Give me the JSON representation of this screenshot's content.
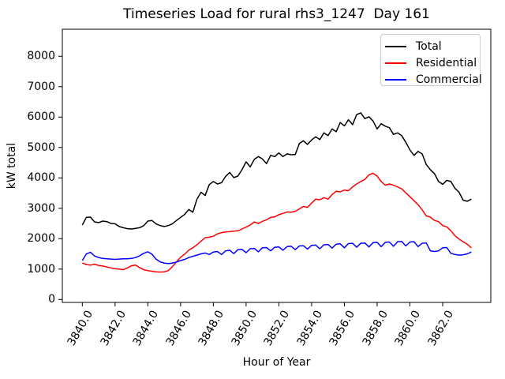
{
  "title": "Timeseries Load for rural rhs3_1247  Day 161",
  "chart_data": {
    "type": "line",
    "title": "Timeseries Load for rural rhs3_1247  Day 161",
    "xlabel": "Hour of Year",
    "ylabel": "kW total",
    "xlim": [
      3838.78,
      3864.94
    ],
    "ylim": [
      -96,
      8890
    ],
    "grid": false,
    "legend_position": "upper right",
    "xticks": [
      3840,
      3842,
      3844,
      3846,
      3848,
      3850,
      3852,
      3854,
      3856,
      3858,
      3860,
      3862
    ],
    "xtick_labels": [
      "3840.0",
      "3842.0",
      "3844.0",
      "3846.0",
      "3848.0",
      "3850.0",
      "3852.0",
      "3854.0",
      "3856.0",
      "3858.0",
      "3860.0",
      "3862.0"
    ],
    "yticks": [
      0,
      1000,
      2000,
      3000,
      4000,
      5000,
      6000,
      7000,
      8000
    ],
    "ytick_labels": [
      "0",
      "1000",
      "2000",
      "3000",
      "4000",
      "5000",
      "6000",
      "7000",
      "8000"
    ],
    "x_start": 3840.0,
    "x_step": 0.25,
    "series": [
      {
        "name": "Total",
        "color": "#000000",
        "values": [
          2450,
          2700,
          2710,
          2550,
          2530,
          2580,
          2560,
          2500,
          2490,
          2400,
          2360,
          2330,
          2320,
          2340,
          2360,
          2430,
          2580,
          2600,
          2490,
          2430,
          2400,
          2430,
          2490,
          2600,
          2700,
          2800,
          2960,
          2870,
          3300,
          3530,
          3420,
          3780,
          3880,
          3800,
          3840,
          4050,
          4180,
          4010,
          4060,
          4270,
          4530,
          4360,
          4610,
          4700,
          4620,
          4470,
          4740,
          4700,
          4820,
          4700,
          4790,
          4760,
          4770,
          5130,
          5220,
          5100,
          5250,
          5350,
          5260,
          5480,
          5390,
          5610,
          5520,
          5820,
          5710,
          5910,
          5750,
          6080,
          6140,
          5950,
          6010,
          5870,
          5610,
          5780,
          5700,
          5650,
          5430,
          5480,
          5390,
          5170,
          4920,
          4740,
          4870,
          4790,
          4440,
          4270,
          4140,
          3880,
          3790,
          3920,
          3880,
          3660,
          3530,
          3270,
          3230,
          3300
        ]
      },
      {
        "name": "Residential",
        "color": "#ff0000",
        "values": [
          1200,
          1150,
          1130,
          1160,
          1120,
          1100,
          1070,
          1040,
          1010,
          1000,
          980,
          1040,
          1110,
          1130,
          1050,
          980,
          950,
          930,
          910,
          900,
          910,
          950,
          1080,
          1240,
          1390,
          1490,
          1620,
          1700,
          1800,
          1920,
          2030,
          2050,
          2080,
          2160,
          2200,
          2220,
          2230,
          2250,
          2260,
          2320,
          2380,
          2450,
          2550,
          2500,
          2570,
          2620,
          2700,
          2720,
          2790,
          2830,
          2880,
          2870,
          2900,
          2980,
          3060,
          3030,
          3170,
          3300,
          3280,
          3350,
          3300,
          3450,
          3560,
          3540,
          3600,
          3580,
          3700,
          3800,
          3880,
          3950,
          4100,
          4150,
          4060,
          3880,
          3760,
          3800,
          3760,
          3700,
          3640,
          3510,
          3380,
          3250,
          3120,
          2950,
          2750,
          2710,
          2600,
          2560,
          2430,
          2390,
          2260,
          2100,
          1990,
          1900,
          1820,
          1700
        ]
      },
      {
        "name": "Commercial",
        "color": "#0000ff",
        "values": [
          1280,
          1500,
          1550,
          1430,
          1380,
          1350,
          1340,
          1330,
          1320,
          1330,
          1340,
          1340,
          1350,
          1380,
          1440,
          1520,
          1570,
          1490,
          1330,
          1240,
          1200,
          1180,
          1200,
          1230,
          1280,
          1320,
          1380,
          1420,
          1460,
          1500,
          1530,
          1480,
          1560,
          1580,
          1480,
          1600,
          1620,
          1510,
          1640,
          1650,
          1540,
          1670,
          1680,
          1570,
          1700,
          1710,
          1600,
          1720,
          1730,
          1620,
          1740,
          1750,
          1640,
          1760,
          1770,
          1660,
          1780,
          1790,
          1670,
          1800,
          1810,
          1690,
          1820,
          1830,
          1700,
          1840,
          1850,
          1720,
          1850,
          1860,
          1730,
          1870,
          1880,
          1740,
          1880,
          1890,
          1750,
          1900,
          1910,
          1760,
          1890,
          1900,
          1740,
          1850,
          1860,
          1600,
          1580,
          1600,
          1700,
          1710,
          1520,
          1480,
          1460,
          1470,
          1500,
          1560
        ]
      }
    ]
  }
}
